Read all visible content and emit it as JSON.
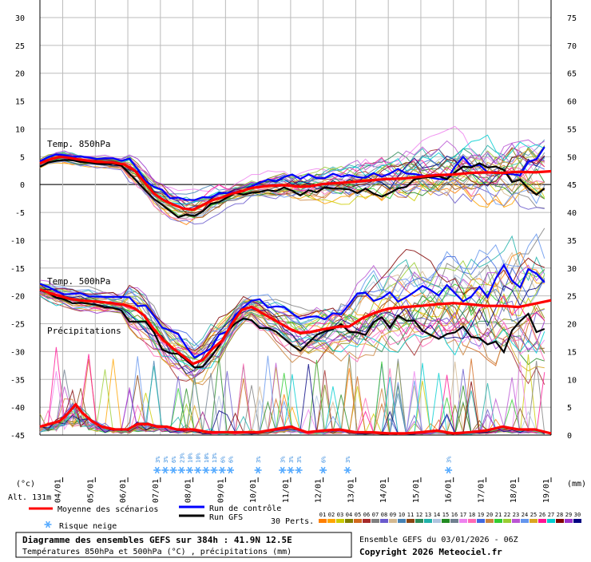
{
  "chart_data": {
    "type": "line",
    "left_unit": "(°c)",
    "right_unit": "(mm)",
    "altitude_label": "Alt. 131m",
    "left_ticks": [
      30,
      25,
      20,
      15,
      10,
      5,
      0,
      -5,
      -10,
      -15,
      -20,
      -25,
      -30,
      -35,
      -40,
      -45
    ],
    "right_ticks": [
      75,
      70,
      65,
      60,
      55,
      50,
      45,
      40,
      35,
      30,
      25,
      20,
      15,
      10,
      5,
      0
    ],
    "date_labels": [
      "04/01",
      "05/01",
      "06/01",
      "07/01",
      "08/01",
      "09/01",
      "10/01",
      "11/01",
      "12/01",
      "13/01",
      "14/01",
      "15/01",
      "16/01",
      "17/01",
      "18/01",
      "19/01"
    ],
    "panel_labels": {
      "t850": "Temp. 850hPa",
      "t500": "Temp. 500hPa",
      "precip": "Précipitations"
    },
    "day_axis": {
      "start": 3.3,
      "end": 19.0
    },
    "t850_mean": [
      [
        3.3,
        3.8
      ],
      [
        3.6,
        4.5
      ],
      [
        3.9,
        5.0
      ],
      [
        4.2,
        4.8
      ],
      [
        4.5,
        4.5
      ],
      [
        5.0,
        4.1
      ],
      [
        5.5,
        4.0
      ],
      [
        5.9,
        3.6
      ],
      [
        6.2,
        2.6
      ],
      [
        6.5,
        0.5
      ],
      [
        6.8,
        -1.6
      ],
      [
        7.1,
        -2.8
      ],
      [
        7.4,
        -3.6
      ],
      [
        7.7,
        -4.3
      ],
      [
        8.0,
        -4.5
      ],
      [
        8.3,
        -3.7
      ],
      [
        8.6,
        -2.8
      ],
      [
        8.9,
        -2.3
      ],
      [
        9.2,
        -1.6
      ],
      [
        9.5,
        -1.2
      ],
      [
        9.8,
        -0.6
      ],
      [
        10.1,
        -0.4
      ],
      [
        10.4,
        -0.2
      ],
      [
        10.7,
        -0.1
      ],
      [
        11.0,
        -0.2
      ],
      [
        11.3,
        -0.4
      ],
      [
        11.6,
        -0.3
      ],
      [
        12.0,
        0.1
      ],
      [
        12.5,
        0.3
      ],
      [
        13.0,
        0.5
      ],
      [
        13.5,
        0.8
      ],
      [
        14.0,
        1.0
      ],
      [
        14.5,
        1.1
      ],
      [
        15.0,
        1.4
      ],
      [
        15.5,
        1.7
      ],
      [
        16.0,
        1.8
      ],
      [
        16.5,
        2.1
      ],
      [
        17.0,
        2.2
      ],
      [
        17.5,
        2.1
      ],
      [
        18.0,
        2.3
      ],
      [
        18.5,
        2.2
      ],
      [
        19.0,
        2.4
      ]
    ],
    "t500_mean": [
      [
        3.3,
        -18.8
      ],
      [
        3.6,
        -19.5
      ],
      [
        3.9,
        -20.0
      ],
      [
        4.2,
        -20.5
      ],
      [
        4.5,
        -20.8
      ],
      [
        5.0,
        -21.0
      ],
      [
        5.5,
        -21.3
      ],
      [
        5.9,
        -21.6
      ],
      [
        6.2,
        -22.2
      ],
      [
        6.5,
        -23.5
      ],
      [
        6.8,
        -26.0
      ],
      [
        7.1,
        -28.0
      ],
      [
        7.4,
        -29.5
      ],
      [
        7.7,
        -30.8
      ],
      [
        8.0,
        -32.2
      ],
      [
        8.3,
        -31.5
      ],
      [
        8.6,
        -29.5
      ],
      [
        8.9,
        -28.0
      ],
      [
        9.2,
        -25.0
      ],
      [
        9.5,
        -22.5
      ],
      [
        9.8,
        -22.0
      ],
      [
        10.1,
        -23.0
      ],
      [
        10.4,
        -24.0
      ],
      [
        10.7,
        -25.0
      ],
      [
        11.0,
        -26.0
      ],
      [
        11.3,
        -26.7
      ],
      [
        11.6,
        -26.5
      ],
      [
        12.0,
        -26.0
      ],
      [
        12.5,
        -25.5
      ],
      [
        12.8,
        -25.5
      ],
      [
        13.2,
        -24.0
      ],
      [
        13.6,
        -23.0
      ],
      [
        14.0,
        -22.3
      ],
      [
        14.5,
        -22.0
      ],
      [
        15.0,
        -21.8
      ],
      [
        15.5,
        -21.5
      ],
      [
        16.0,
        -21.3
      ],
      [
        16.5,
        -21.5
      ],
      [
        17.0,
        -21.8
      ],
      [
        17.5,
        -21.8
      ],
      [
        18.0,
        -22.0
      ],
      [
        18.5,
        -21.4
      ],
      [
        19.0,
        -20.8
      ]
    ],
    "precip_mean": [
      [
        3.3,
        1.5
      ],
      [
        3.6,
        2.0
      ],
      [
        3.9,
        2.5
      ],
      [
        4.1,
        3.5
      ],
      [
        4.4,
        5.5
      ],
      [
        4.6,
        4.0
      ],
      [
        4.9,
        2.5
      ],
      [
        5.2,
        1.5
      ],
      [
        5.6,
        1.0
      ],
      [
        6.0,
        1.0
      ],
      [
        6.3,
        2.0
      ],
      [
        6.6,
        2.0
      ],
      [
        6.9,
        1.5
      ],
      [
        7.2,
        1.5
      ],
      [
        7.5,
        1.0
      ],
      [
        8.0,
        1.0
      ],
      [
        8.5,
        0.5
      ],
      [
        9.0,
        0.5
      ],
      [
        9.5,
        0.5
      ],
      [
        10.0,
        0.5
      ],
      [
        10.5,
        1.0
      ],
      [
        11.0,
        1.5
      ],
      [
        11.5,
        0.5
      ],
      [
        12.0,
        0.8
      ],
      [
        12.5,
        1.0
      ],
      [
        13.0,
        0.5
      ],
      [
        13.5,
        0.5
      ],
      [
        14.0,
        0.3
      ],
      [
        14.5,
        0.3
      ],
      [
        15.0,
        0.5
      ],
      [
        15.5,
        0.8
      ],
      [
        16.0,
        0.3
      ],
      [
        16.5,
        0.5
      ],
      [
        17.0,
        0.8
      ],
      [
        17.5,
        1.5
      ],
      [
        18.0,
        1.0
      ],
      [
        18.5,
        1.0
      ],
      [
        19.0,
        0.3
      ]
    ],
    "snow_risk": [
      {
        "day": 6.9,
        "pct": "3%"
      },
      {
        "day": 7.15,
        "pct": "3%"
      },
      {
        "day": 7.4,
        "pct": "6%"
      },
      {
        "day": 7.65,
        "pct": "23%"
      },
      {
        "day": 7.9,
        "pct": "10%"
      },
      {
        "day": 8.15,
        "pct": "10%"
      },
      {
        "day": 8.4,
        "pct": "10%"
      },
      {
        "day": 8.65,
        "pct": "13%"
      },
      {
        "day": 8.9,
        "pct": "6%"
      },
      {
        "day": 9.15,
        "pct": "6%"
      },
      {
        "day": 10.0,
        "pct": "3%"
      },
      {
        "day": 10.75,
        "pct": "3%"
      },
      {
        "day": 11.0,
        "pct": "3%"
      },
      {
        "day": 11.25,
        "pct": "3%"
      },
      {
        "day": 12.0,
        "pct": "6%"
      },
      {
        "day": 12.75,
        "pct": "3%"
      },
      {
        "day": 15.85,
        "pct": "3%"
      }
    ],
    "legend": {
      "mean": "Moyenne des scénarios",
      "control": "Run de contrôle",
      "gfs": "Run GFS",
      "snow": "Risque neige",
      "perts": "30 Perts."
    },
    "pert_numbers": [
      "01",
      "02",
      "03",
      "04",
      "05",
      "06",
      "07",
      "08",
      "09",
      "10",
      "11",
      "12",
      "13",
      "14",
      "15",
      "16",
      "17",
      "18",
      "19",
      "20",
      "21",
      "22",
      "23",
      "24",
      "25",
      "26",
      "27",
      "28",
      "29",
      "30"
    ],
    "pert_colors": [
      "#ff7f00",
      "#ffa500",
      "#cccc00",
      "#808000",
      "#d2691e",
      "#a52a2a",
      "#808080",
      "#6a5acd",
      "#d3b890",
      "#4682b4",
      "#8b4513",
      "#2e8b57",
      "#20b2aa",
      "#b0c4de",
      "#228b22",
      "#708090",
      "#ee82ee",
      "#ff69b4",
      "#4169e1",
      "#cd853f",
      "#32cd32",
      "#9acd32",
      "#ba55d3",
      "#6495ed",
      "#daa520",
      "#ff1493",
      "#00ced1",
      "#800000",
      "#9932cc",
      "#000080"
    ],
    "series_colors": {
      "mean": "#ff0000",
      "control": "#0000ff",
      "gfs": "#000000"
    },
    "footer": {
      "title": "Diagramme des ensembles GEFS sur 384h : 41.9N 12.5E",
      "subtitle": "Températures 850hPa et 500hPa (°C) , précipitations (mm)",
      "run": "Ensemble GEFS du 03/01/2026 - 06Z",
      "copyright": "Copyright 2026 Meteociel.fr"
    }
  }
}
